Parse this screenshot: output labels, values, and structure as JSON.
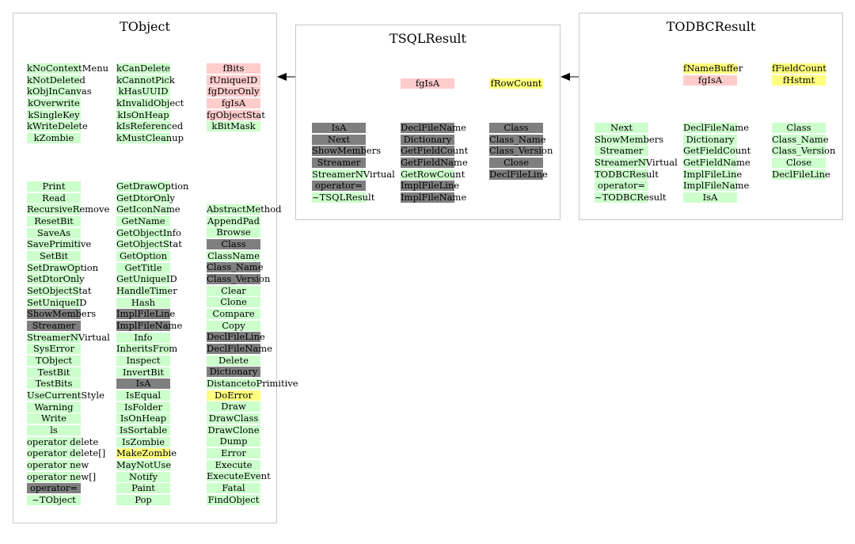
{
  "colors": {
    "green": "#ccffcc",
    "pink": "#ffcccc",
    "yellow": "#ffff7f",
    "gray": "#7f7f7f",
    "border": "#c8c8c8"
  },
  "classes": [
    {
      "id": "tobject",
      "title": "TObject",
      "columns": [
        {
          "cells": [
            {
              "t": "kNoContextMenu",
              "c": "green"
            },
            {
              "t": "kNotDeleted",
              "c": "green"
            },
            {
              "t": "kObjInCanvas",
              "c": "green"
            },
            {
              "t": "kOverwrite",
              "c": "green"
            },
            {
              "t": "kSingleKey",
              "c": "green"
            },
            {
              "t": "kWriteDelete",
              "c": "green"
            },
            {
              "t": "kZombie",
              "c": "green"
            }
          ]
        },
        {
          "cells": [
            {
              "t": "kCanDelete",
              "c": "green"
            },
            {
              "t": "kCannotPick",
              "c": "green"
            },
            {
              "t": "kHasUUID",
              "c": "green"
            },
            {
              "t": "kInvalidObject",
              "c": "green"
            },
            {
              "t": "kIsOnHeap",
              "c": "green"
            },
            {
              "t": "kIsReferenced",
              "c": "green"
            },
            {
              "t": "kMustCleanup",
              "c": "green"
            }
          ]
        },
        {
          "cells": [
            {
              "t": "fBits",
              "c": "pink"
            },
            {
              "t": "fUniqueID",
              "c": "pink"
            },
            {
              "t": "fgDtorOnly",
              "c": "pink"
            },
            {
              "t": "fgIsA",
              "c": "pink"
            },
            {
              "t": "fgObjectStat",
              "c": "pink"
            },
            {
              "t": "kBitMask",
              "c": "green"
            }
          ]
        },
        {
          "cells": [
            {
              "t": "Print",
              "c": "green"
            },
            {
              "t": "Read",
              "c": "green"
            },
            {
              "t": "RecursiveRemove",
              "c": "green"
            },
            {
              "t": "ResetBit",
              "c": "green"
            },
            {
              "t": "SaveAs",
              "c": "green"
            },
            {
              "t": "SavePrimitive",
              "c": "green"
            },
            {
              "t": "SetBit",
              "c": "green"
            },
            {
              "t": "SetDrawOption",
              "c": "green"
            },
            {
              "t": "SetDtorOnly",
              "c": "green"
            },
            {
              "t": "SetObjectStat",
              "c": "green"
            },
            {
              "t": "SetUniqueID",
              "c": "green"
            },
            {
              "t": "ShowMembers",
              "c": "gray"
            },
            {
              "t": "Streamer",
              "c": "gray"
            },
            {
              "t": "StreamerNVirtual",
              "c": "green"
            },
            {
              "t": "SysError",
              "c": "green"
            },
            {
              "t": "TObject",
              "c": "green"
            },
            {
              "t": "TestBit",
              "c": "green"
            },
            {
              "t": "TestBits",
              "c": "green"
            },
            {
              "t": "UseCurrentStyle",
              "c": "green"
            },
            {
              "t": "Warning",
              "c": "green"
            },
            {
              "t": "Write",
              "c": "green"
            },
            {
              "t": "ls",
              "c": "green"
            },
            {
              "t": "operator delete",
              "c": "green"
            },
            {
              "t": "operator delete[]",
              "c": "green"
            },
            {
              "t": "operator new",
              "c": "green"
            },
            {
              "t": "operator new[]",
              "c": "green"
            },
            {
              "t": "operator=",
              "c": "gray"
            },
            {
              "t": "~TObject",
              "c": "green"
            }
          ]
        },
        {
          "cells": [
            {
              "t": "GetDrawOption",
              "c": "green"
            },
            {
              "t": "GetDtorOnly",
              "c": "green"
            },
            {
              "t": "GetIconName",
              "c": "green"
            },
            {
              "t": "GetName",
              "c": "green"
            },
            {
              "t": "GetObjectInfo",
              "c": "green"
            },
            {
              "t": "GetObjectStat",
              "c": "green"
            },
            {
              "t": "GetOption",
              "c": "green"
            },
            {
              "t": "GetTitle",
              "c": "green"
            },
            {
              "t": "GetUniqueID",
              "c": "green"
            },
            {
              "t": "HandleTimer",
              "c": "green"
            },
            {
              "t": "Hash",
              "c": "green"
            },
            {
              "t": "ImplFileLine",
              "c": "gray"
            },
            {
              "t": "ImplFileName",
              "c": "gray"
            },
            {
              "t": "Info",
              "c": "green"
            },
            {
              "t": "InheritsFrom",
              "c": "green"
            },
            {
              "t": "Inspect",
              "c": "green"
            },
            {
              "t": "InvertBit",
              "c": "green"
            },
            {
              "t": "IsA",
              "c": "gray"
            },
            {
              "t": "IsEqual",
              "c": "green"
            },
            {
              "t": "IsFolder",
              "c": "green"
            },
            {
              "t": "IsOnHeap",
              "c": "green"
            },
            {
              "t": "IsSortable",
              "c": "green"
            },
            {
              "t": "IsZombie",
              "c": "green"
            },
            {
              "t": "MakeZombie",
              "c": "yellow"
            },
            {
              "t": "MayNotUse",
              "c": "green"
            },
            {
              "t": "Notify",
              "c": "green"
            },
            {
              "t": "Paint",
              "c": "green"
            },
            {
              "t": "Pop",
              "c": "green"
            }
          ]
        },
        {
          "cells": [
            {
              "t": "AbstractMethod",
              "c": "green"
            },
            {
              "t": "AppendPad",
              "c": "green"
            },
            {
              "t": "Browse",
              "c": "green"
            },
            {
              "t": "Class",
              "c": "gray"
            },
            {
              "t": "ClassName",
              "c": "green"
            },
            {
              "t": "Class_Name",
              "c": "gray"
            },
            {
              "t": "Class_Version",
              "c": "gray"
            },
            {
              "t": "Clear",
              "c": "green"
            },
            {
              "t": "Clone",
              "c": "green"
            },
            {
              "t": "Compare",
              "c": "green"
            },
            {
              "t": "Copy",
              "c": "green"
            },
            {
              "t": "DeclFileLine",
              "c": "gray"
            },
            {
              "t": "DeclFileName",
              "c": "gray"
            },
            {
              "t": "Delete",
              "c": "green"
            },
            {
              "t": "Dictionary",
              "c": "gray"
            },
            {
              "t": "DistancetoPrimitive",
              "c": "green"
            },
            {
              "t": "DoError",
              "c": "yellow"
            },
            {
              "t": "Draw",
              "c": "green"
            },
            {
              "t": "DrawClass",
              "c": "green"
            },
            {
              "t": "DrawClone",
              "c": "green"
            },
            {
              "t": "Dump",
              "c": "green"
            },
            {
              "t": "Error",
              "c": "green"
            },
            {
              "t": "Execute",
              "c": "green"
            },
            {
              "t": "ExecuteEvent",
              "c": "green"
            },
            {
              "t": "Fatal",
              "c": "green"
            },
            {
              "t": "FindObject",
              "c": "green"
            }
          ]
        }
      ]
    },
    {
      "id": "tsqlresult",
      "title": "TSQLResult",
      "columns": [
        {
          "cells": [
            {
              "t": "fgIsA",
              "c": "pink"
            }
          ]
        },
        {
          "cells": [
            {
              "t": "fRowCount",
              "c": "yellow"
            }
          ]
        },
        {
          "cells": [
            {
              "t": "IsA",
              "c": "gray"
            },
            {
              "t": "Next",
              "c": "gray"
            },
            {
              "t": "ShowMembers",
              "c": "gray"
            },
            {
              "t": "Streamer",
              "c": "gray"
            },
            {
              "t": "StreamerNVirtual",
              "c": "green"
            },
            {
              "t": "operator=",
              "c": "gray"
            },
            {
              "t": "~TSQLResult",
              "c": "green"
            }
          ]
        },
        {
          "cells": [
            {
              "t": "DeclFileName",
              "c": "gray"
            },
            {
              "t": "Dictionary",
              "c": "gray"
            },
            {
              "t": "GetFieldCount",
              "c": "gray"
            },
            {
              "t": "GetFieldName",
              "c": "gray"
            },
            {
              "t": "GetRowCount",
              "c": "green"
            },
            {
              "t": "ImplFileLine",
              "c": "gray"
            },
            {
              "t": "ImplFileName",
              "c": "gray"
            }
          ]
        },
        {
          "cells": [
            {
              "t": "Class",
              "c": "gray"
            },
            {
              "t": "Class_Name",
              "c": "gray"
            },
            {
              "t": "Class_Version",
              "c": "gray"
            },
            {
              "t": "Close",
              "c": "gray"
            },
            {
              "t": "DeclFileLine",
              "c": "gray"
            }
          ]
        }
      ]
    },
    {
      "id": "todbcresult",
      "title": "TODBCResult",
      "columns": [
        {
          "cells": [
            {
              "t": "fNameBuffer",
              "c": "yellow"
            },
            {
              "t": "fgIsA",
              "c": "pink"
            }
          ]
        },
        {
          "cells": [
            {
              "t": "fFieldCount",
              "c": "yellow"
            },
            {
              "t": "fHstmt",
              "c": "yellow"
            }
          ]
        },
        {
          "cells": [
            {
              "t": "Next",
              "c": "green"
            },
            {
              "t": "ShowMembers",
              "c": "green"
            },
            {
              "t": "Streamer",
              "c": "green"
            },
            {
              "t": "StreamerNVirtual",
              "c": "green"
            },
            {
              "t": "TODBCResult",
              "c": "green"
            },
            {
              "t": "operator=",
              "c": "green"
            },
            {
              "t": "~TODBCResult",
              "c": "green"
            }
          ]
        },
        {
          "cells": [
            {
              "t": "DeclFileName",
              "c": "green"
            },
            {
              "t": "Dictionary",
              "c": "green"
            },
            {
              "t": "GetFieldCount",
              "c": "green"
            },
            {
              "t": "GetFieldName",
              "c": "green"
            },
            {
              "t": "ImplFileLine",
              "c": "green"
            },
            {
              "t": "ImplFileName",
              "c": "green"
            },
            {
              "t": "IsA",
              "c": "green"
            }
          ]
        },
        {
          "cells": [
            {
              "t": "Class",
              "c": "green"
            },
            {
              "t": "Class_Name",
              "c": "green"
            },
            {
              "t": "Class_Version",
              "c": "green"
            },
            {
              "t": "Close",
              "c": "green"
            },
            {
              "t": "DeclFileLine",
              "c": "green"
            }
          ]
        }
      ]
    }
  ]
}
